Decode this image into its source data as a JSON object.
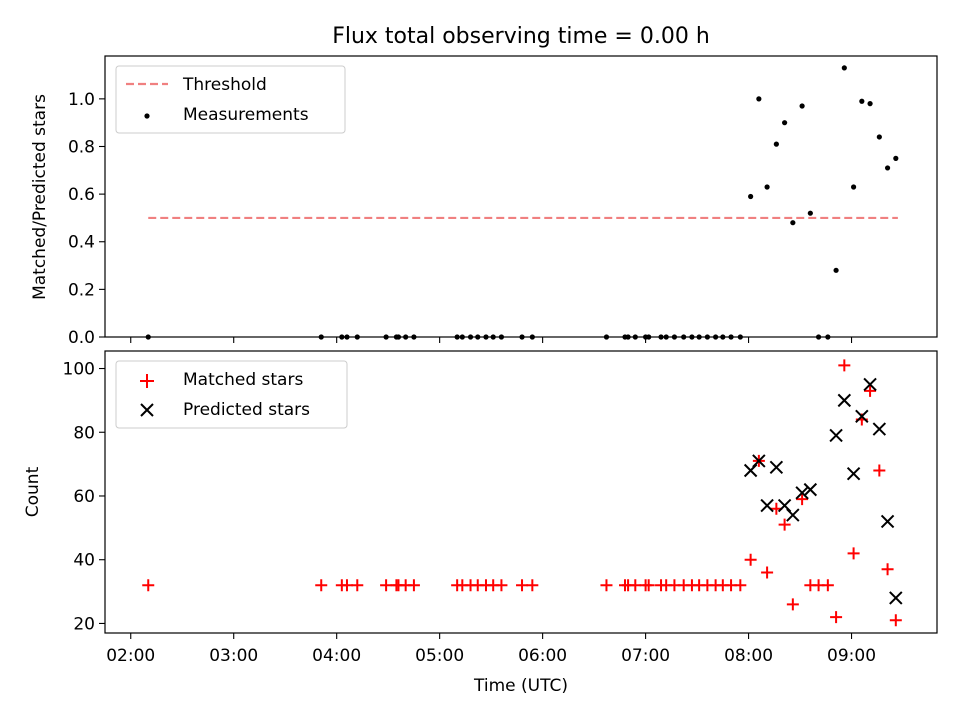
{
  "title": "Flux total observing time = 0.00 h",
  "colors": {
    "threshold": "#f08080",
    "measurement": "#000000",
    "matched": "#ff0000",
    "predicted": "#000000"
  },
  "chart_data": [
    {
      "type": "scatter",
      "ylabel": "Matched/Predicted stars",
      "ylim": [
        0,
        1.18
      ],
      "xlim": [
        1.75,
        9.83
      ],
      "yticks": [
        0.0,
        0.2,
        0.4,
        0.6,
        0.8,
        1.0
      ],
      "ytick_labels": [
        "0.0",
        "0.2",
        "0.4",
        "0.6",
        "0.8",
        "1.0"
      ],
      "legend_position": "top-left",
      "threshold": {
        "name": "Threshold",
        "y": 0.5,
        "x": [
          2.17,
          9.45
        ]
      },
      "series": [
        {
          "name": "Measurements",
          "points": [
            [
              2.17,
              0
            ],
            [
              3.85,
              0
            ],
            [
              4.05,
              0
            ],
            [
              4.1,
              0
            ],
            [
              4.2,
              0
            ],
            [
              4.48,
              0
            ],
            [
              4.58,
              0
            ],
            [
              4.6,
              0
            ],
            [
              4.67,
              0
            ],
            [
              4.75,
              0
            ],
            [
              5.17,
              0
            ],
            [
              5.22,
              0
            ],
            [
              5.3,
              0
            ],
            [
              5.37,
              0
            ],
            [
              5.45,
              0
            ],
            [
              5.52,
              0
            ],
            [
              5.6,
              0
            ],
            [
              5.8,
              0
            ],
            [
              5.9,
              0
            ],
            [
              6.62,
              0
            ],
            [
              6.8,
              0
            ],
            [
              6.83,
              0
            ],
            [
              6.9,
              0
            ],
            [
              7.0,
              0
            ],
            [
              7.03,
              0
            ],
            [
              7.15,
              0
            ],
            [
              7.2,
              0
            ],
            [
              7.28,
              0
            ],
            [
              7.37,
              0
            ],
            [
              7.45,
              0
            ],
            [
              7.52,
              0
            ],
            [
              7.6,
              0
            ],
            [
              7.68,
              0
            ],
            [
              7.75,
              0
            ],
            [
              7.83,
              0
            ],
            [
              7.92,
              0
            ],
            [
              8.02,
              0.59
            ],
            [
              8.1,
              1.0
            ],
            [
              8.18,
              0.63
            ],
            [
              8.27,
              0.81
            ],
            [
              8.35,
              0.9
            ],
            [
              8.43,
              0.48
            ],
            [
              8.52,
              0.97
            ],
            [
              8.6,
              0.52
            ],
            [
              8.68,
              0
            ],
            [
              8.77,
              0
            ],
            [
              8.85,
              0.28
            ],
            [
              8.93,
              1.13
            ],
            [
              9.02,
              0.63
            ],
            [
              9.1,
              0.99
            ],
            [
              9.18,
              0.98
            ],
            [
              9.27,
              0.84
            ],
            [
              9.35,
              0.71
            ],
            [
              9.43,
              0.75
            ]
          ]
        }
      ]
    },
    {
      "type": "scatter",
      "ylabel": "Count",
      "xlabel": "Time (UTC)",
      "ylim": [
        17,
        105.5
      ],
      "xlim": [
        1.75,
        9.83
      ],
      "yticks": [
        20,
        40,
        60,
        80,
        100
      ],
      "ytick_labels": [
        "20",
        "40",
        "60",
        "80",
        "100"
      ],
      "xticks": [
        2,
        3,
        4,
        5,
        6,
        7,
        8,
        9
      ],
      "xtick_labels": [
        "02:00",
        "03:00",
        "04:00",
        "05:00",
        "06:00",
        "07:00",
        "08:00",
        "09:00"
      ],
      "legend_position": "top-left",
      "series": [
        {
          "name": "Matched stars",
          "marker": "plus",
          "points": [
            [
              2.17,
              32
            ],
            [
              3.85,
              32
            ],
            [
              4.05,
              32
            ],
            [
              4.1,
              32
            ],
            [
              4.2,
              32
            ],
            [
              4.48,
              32
            ],
            [
              4.58,
              32
            ],
            [
              4.6,
              32
            ],
            [
              4.67,
              32
            ],
            [
              4.75,
              32
            ],
            [
              5.17,
              32
            ],
            [
              5.22,
              32
            ],
            [
              5.3,
              32
            ],
            [
              5.37,
              32
            ],
            [
              5.45,
              32
            ],
            [
              5.52,
              32
            ],
            [
              5.6,
              32
            ],
            [
              5.8,
              32
            ],
            [
              5.9,
              32
            ],
            [
              6.62,
              32
            ],
            [
              6.8,
              32
            ],
            [
              6.83,
              32
            ],
            [
              6.9,
              32
            ],
            [
              7.0,
              32
            ],
            [
              7.03,
              32
            ],
            [
              7.15,
              32
            ],
            [
              7.2,
              32
            ],
            [
              7.28,
              32
            ],
            [
              7.37,
              32
            ],
            [
              7.45,
              32
            ],
            [
              7.52,
              32
            ],
            [
              7.6,
              32
            ],
            [
              7.68,
              32
            ],
            [
              7.75,
              32
            ],
            [
              7.83,
              32
            ],
            [
              7.92,
              32
            ],
            [
              8.02,
              40
            ],
            [
              8.1,
              71
            ],
            [
              8.18,
              36
            ],
            [
              8.27,
              56
            ],
            [
              8.35,
              51
            ],
            [
              8.43,
              26
            ],
            [
              8.52,
              59
            ],
            [
              8.6,
              32
            ],
            [
              8.68,
              32
            ],
            [
              8.77,
              32
            ],
            [
              8.85,
              22
            ],
            [
              8.93,
              101
            ],
            [
              9.02,
              42
            ],
            [
              9.1,
              84
            ],
            [
              9.18,
              93
            ],
            [
              9.27,
              68
            ],
            [
              9.35,
              37
            ],
            [
              9.43,
              21
            ]
          ]
        },
        {
          "name": "Predicted stars",
          "marker": "x",
          "points": [
            [
              8.02,
              68
            ],
            [
              8.1,
              71
            ],
            [
              8.18,
              57
            ],
            [
              8.27,
              69
            ],
            [
              8.35,
              57
            ],
            [
              8.43,
              54
            ],
            [
              8.52,
              61
            ],
            [
              8.6,
              62
            ],
            [
              8.85,
              79
            ],
            [
              8.93,
              90
            ],
            [
              9.02,
              67
            ],
            [
              9.1,
              85
            ],
            [
              9.18,
              95
            ],
            [
              9.27,
              81
            ],
            [
              9.35,
              52
            ],
            [
              9.43,
              28
            ]
          ]
        }
      ]
    }
  ]
}
